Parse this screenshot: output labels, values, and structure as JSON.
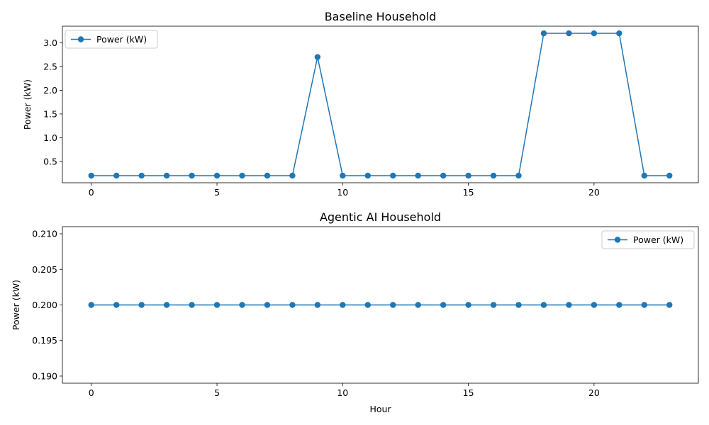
{
  "chart_data": [
    {
      "type": "line",
      "title": "Baseline Household",
      "xlabel": "",
      "ylabel": "Power (kW)",
      "x": [
        0,
        1,
        2,
        3,
        4,
        5,
        6,
        7,
        8,
        9,
        10,
        11,
        12,
        13,
        14,
        15,
        16,
        17,
        18,
        19,
        20,
        21,
        22,
        23
      ],
      "series": [
        {
          "name": "Power (kW)",
          "values": [
            0.2,
            0.2,
            0.2,
            0.2,
            0.2,
            0.2,
            0.2,
            0.2,
            0.2,
            2.7,
            0.2,
            0.2,
            0.2,
            0.2,
            0.2,
            0.2,
            0.2,
            0.2,
            3.2,
            3.2,
            3.2,
            3.2,
            0.2,
            0.2
          ]
        }
      ],
      "xlim": [
        -1.15,
        24.15
      ],
      "ylim": [
        0.05,
        3.35
      ],
      "xticks": [
        0,
        5,
        10,
        15,
        20
      ],
      "xtick_labels": [
        "0",
        "5",
        "10",
        "15",
        "20"
      ],
      "yticks": [
        0.5,
        1.0,
        1.5,
        2.0,
        2.5,
        3.0
      ],
      "ytick_labels": [
        "0.5",
        "1.0",
        "1.5",
        "2.0",
        "2.5",
        "3.0"
      ],
      "legend": "top-left",
      "grid": false,
      "color": "#1f77b4"
    },
    {
      "type": "line",
      "title": "Agentic AI Household",
      "xlabel": "Hour",
      "ylabel": "Power (kW)",
      "x": [
        0,
        1,
        2,
        3,
        4,
        5,
        6,
        7,
        8,
        9,
        10,
        11,
        12,
        13,
        14,
        15,
        16,
        17,
        18,
        19,
        20,
        21,
        22,
        23
      ],
      "series": [
        {
          "name": "Power (kW)",
          "values": [
            0.2,
            0.2,
            0.2,
            0.2,
            0.2,
            0.2,
            0.2,
            0.2,
            0.2,
            0.2,
            0.2,
            0.2,
            0.2,
            0.2,
            0.2,
            0.2,
            0.2,
            0.2,
            0.2,
            0.2,
            0.2,
            0.2,
            0.2,
            0.2
          ]
        }
      ],
      "xlim": [
        -1.15,
        24.15
      ],
      "ylim": [
        0.189,
        0.211
      ],
      "xticks": [
        0,
        5,
        10,
        15,
        20
      ],
      "xtick_labels": [
        "0",
        "5",
        "10",
        "15",
        "20"
      ],
      "yticks": [
        0.19,
        0.195,
        0.2,
        0.205,
        0.21
      ],
      "ytick_labels": [
        "0.190",
        "0.195",
        "0.200",
        "0.205",
        "0.210"
      ],
      "legend": "top-right",
      "grid": false,
      "color": "#1f77b4"
    }
  ]
}
